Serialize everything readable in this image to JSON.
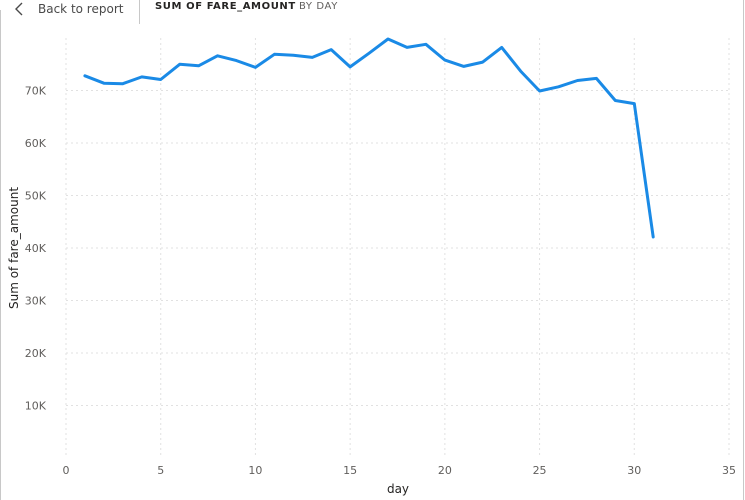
{
  "header": {
    "back_label": "Back to report",
    "title_measure": "SUM OF FARE_AMOUNT",
    "title_axis": "BY DAY"
  },
  "colors": {
    "line": "#1a8ae6",
    "grid": "#e1e1e1",
    "tick_text": "#605e5c"
  },
  "icons": {
    "back": "chevron-left-icon"
  },
  "chart_data": {
    "type": "line",
    "xlabel": "day",
    "ylabel": "Sum of fare_amount",
    "xlim": [
      0,
      35
    ],
    "ylim": [
      0,
      80000
    ],
    "x_ticks": [
      0,
      5,
      10,
      15,
      20,
      25,
      30,
      35
    ],
    "x_tick_labels": [
      "0",
      "5",
      "10",
      "15",
      "20",
      "25",
      "30",
      "35"
    ],
    "y_ticks": [
      10000,
      20000,
      30000,
      40000,
      50000,
      60000,
      70000
    ],
    "y_tick_labels": [
      "10K",
      "20K",
      "30K",
      "40K",
      "50K",
      "60K",
      "70K"
    ],
    "grid": true,
    "series": [
      {
        "x": [
          1,
          2,
          3,
          4,
          5,
          6,
          7,
          8,
          9,
          10,
          11,
          12,
          13,
          14,
          15,
          16,
          17,
          18,
          19,
          20,
          21,
          22,
          23,
          24,
          25,
          26,
          27,
          28,
          29,
          30,
          31
        ],
        "values": [
          72800,
          71400,
          71300,
          72600,
          72100,
          75000,
          74700,
          76600,
          75700,
          74400,
          76900,
          76700,
          76300,
          77800,
          74500,
          77100,
          79800,
          78200,
          78800,
          75800,
          74600,
          75400,
          78200,
          73700,
          69900,
          70700,
          71900,
          72300,
          68100,
          67500,
          42100
        ]
      }
    ]
  }
}
